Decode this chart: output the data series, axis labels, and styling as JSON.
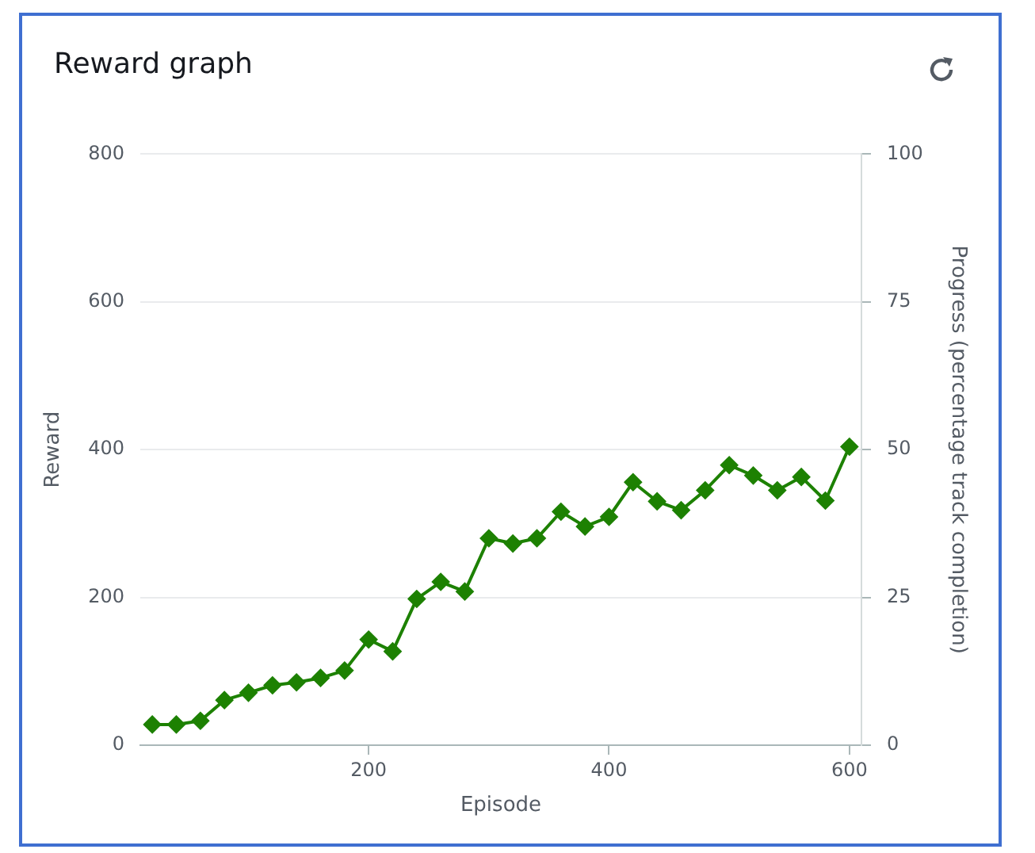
{
  "chart_data": {
    "type": "line",
    "title": "Reward graph",
    "xlabel": "Episode",
    "ylabel": "Reward",
    "y2label": "Progress (percentage track completion)",
    "x": [
      20,
      40,
      60,
      80,
      100,
      120,
      140,
      160,
      180,
      200,
      220,
      240,
      260,
      280,
      300,
      320,
      340,
      360,
      380,
      400,
      420,
      440,
      460,
      480,
      500,
      520,
      540,
      560,
      580,
      600
    ],
    "series": [
      {
        "color": "#1d8102",
        "values": [
          28,
          28,
          33,
          61,
          71,
          81,
          85,
          91,
          101,
          143,
          127,
          198,
          221,
          208,
          280,
          273,
          280,
          316,
          296,
          309,
          356,
          330,
          318,
          345,
          379,
          365,
          345,
          363,
          331,
          404
        ]
      }
    ],
    "xlim": [
      10,
      610
    ],
    "xticks": [
      200,
      400,
      600
    ],
    "ylim": [
      0,
      800
    ],
    "yticks": [
      0,
      200,
      400,
      600,
      800
    ],
    "y2lim": [
      0,
      100
    ],
    "y2ticks": [
      0,
      25,
      50,
      75,
      100
    ],
    "grid": "y",
    "legend": false,
    "marker": "diamond",
    "line_style": "solid"
  }
}
